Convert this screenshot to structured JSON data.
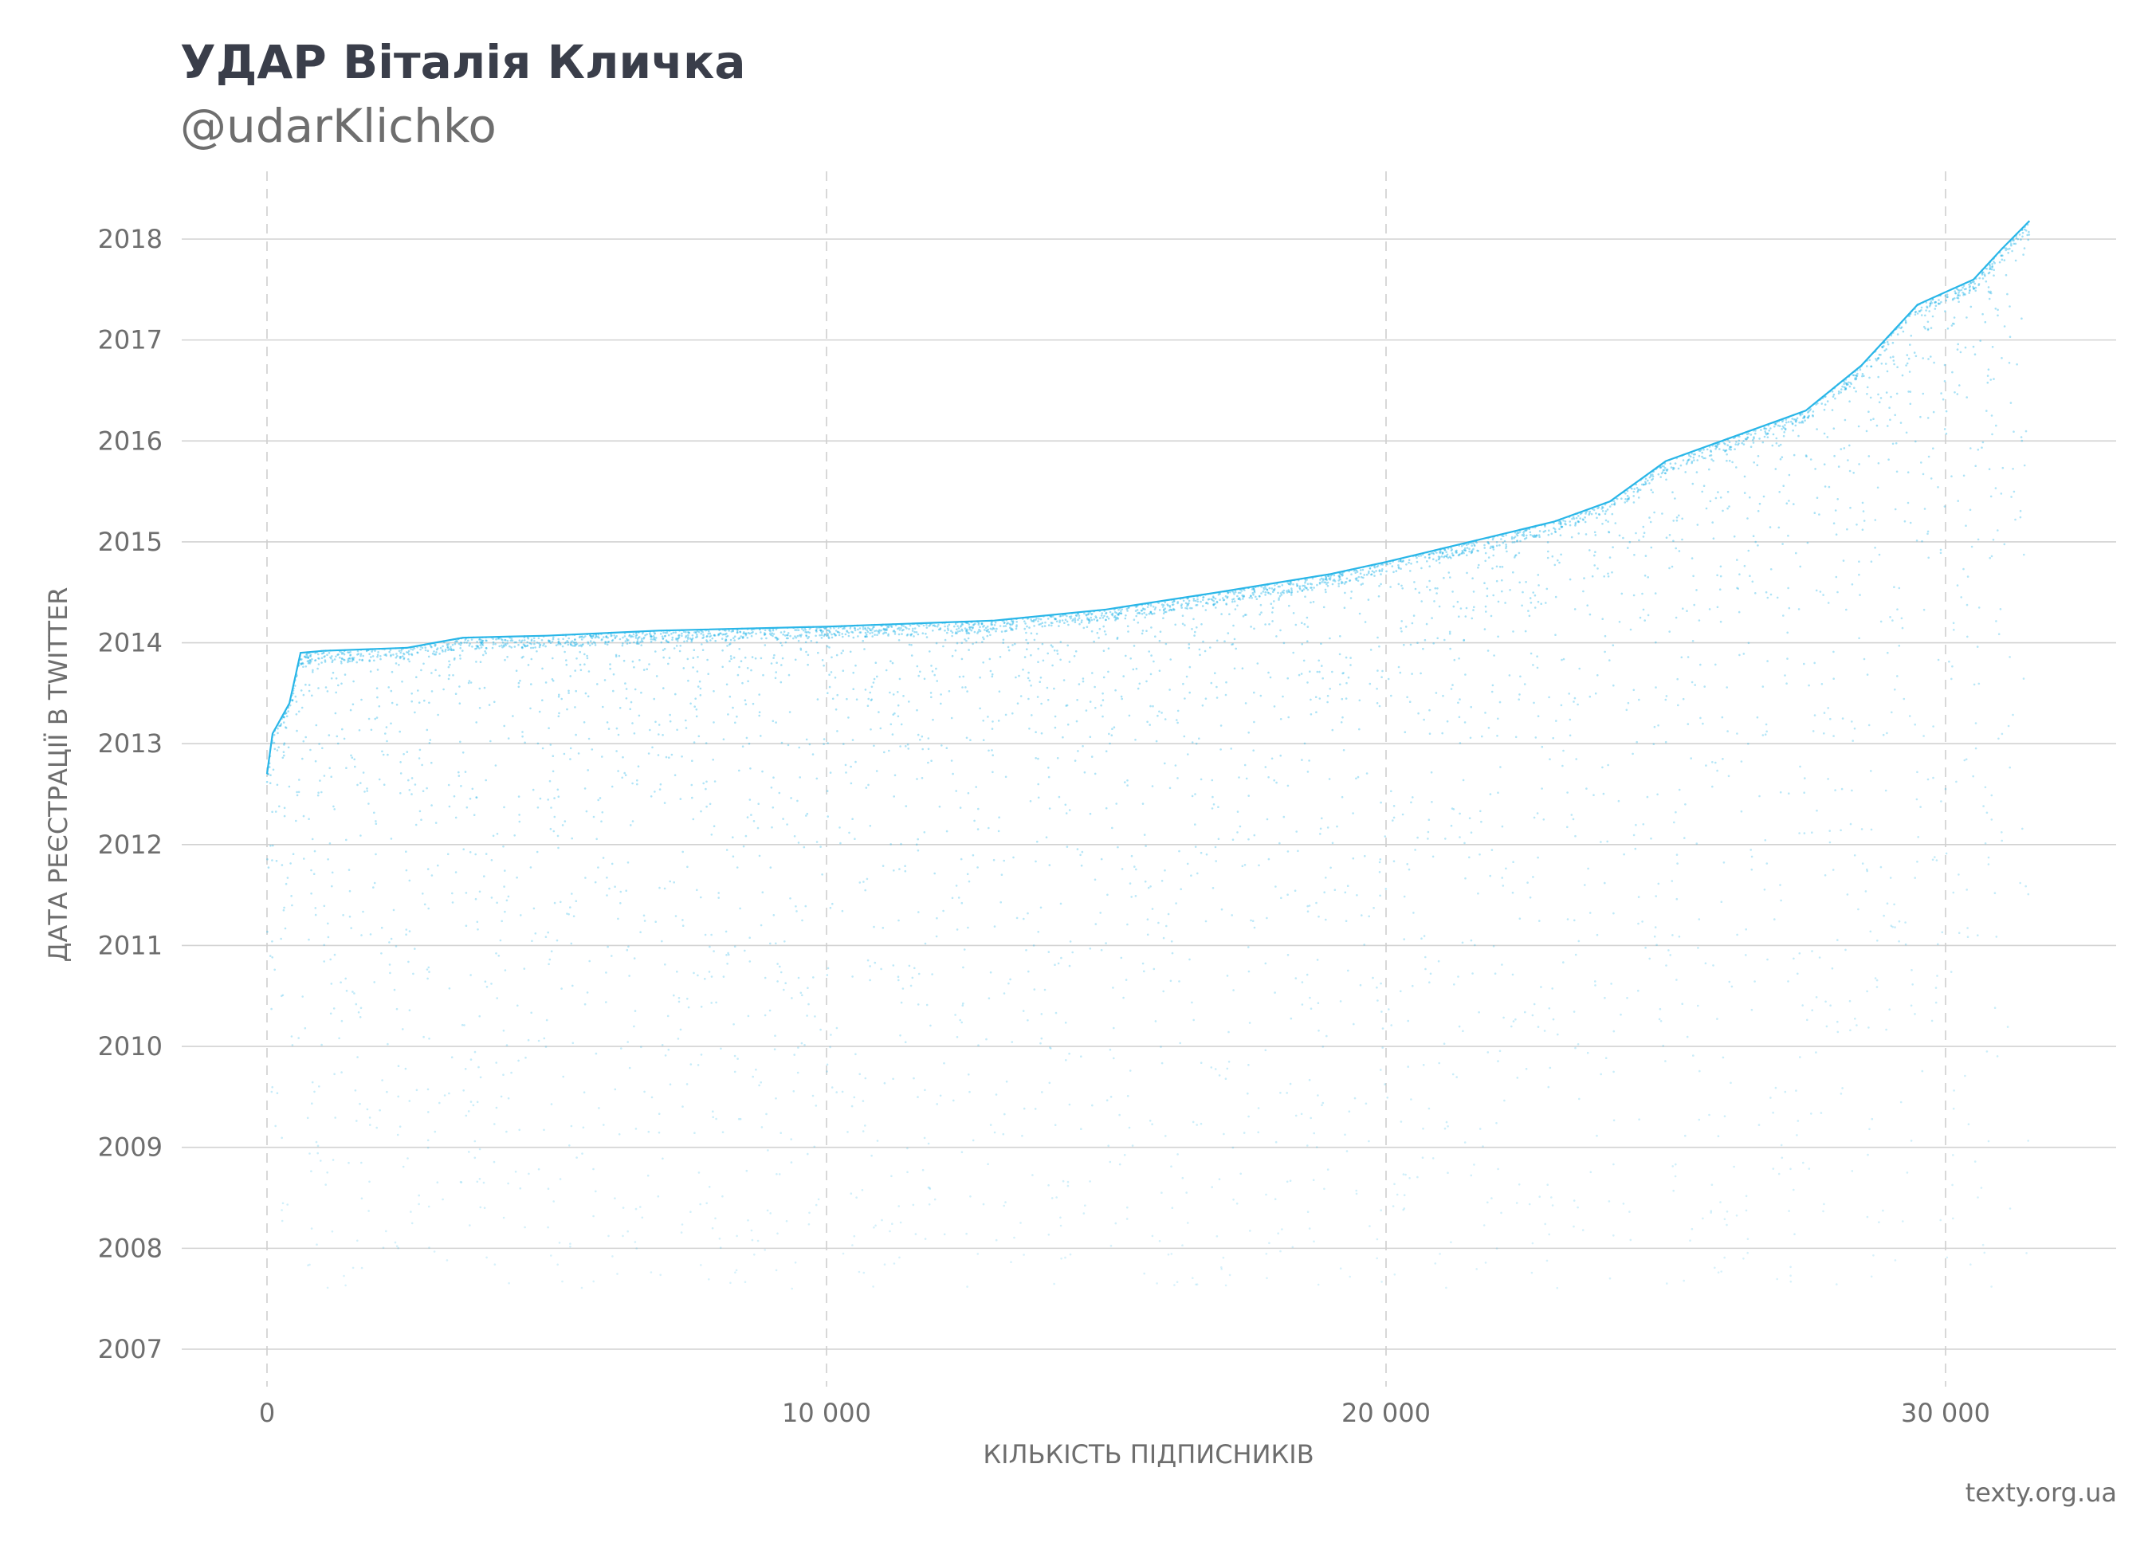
{
  "header": {
    "title": "УДАР Віталія Кличка",
    "subtitle": "@udarKlichko"
  },
  "footer": {
    "source": "texty.org.ua"
  },
  "chart_data": {
    "type": "scatter",
    "title": "УДАР Віталія Кличка",
    "subtitle": "@udarKlichko",
    "xlabel": "КІЛЬКІСТЬ ПІДПИСНИКІВ",
    "ylabel": "ДАТА РЕЄСТРАЦІЇ В TWITTER",
    "xlim": [
      -1500,
      33000
    ],
    "ylim": [
      2006.65,
      2018.65
    ],
    "x_ticks": [
      0,
      10000,
      20000,
      30000
    ],
    "x_tick_labels": [
      "0",
      "10 000",
      "20 000",
      "30 000"
    ],
    "y_ticks": [
      2007,
      2008,
      2009,
      2010,
      2011,
      2012,
      2013,
      2014,
      2015,
      2016,
      2017,
      2018
    ],
    "y_tick_labels": [
      "2007",
      "2008",
      "2009",
      "2010",
      "2011",
      "2012",
      "2013",
      "2014",
      "2015",
      "2016",
      "2017",
      "2018"
    ],
    "grid": {
      "horizontal": "solid",
      "vertical": "dashed"
    },
    "point_color": "#29b6e8",
    "description_of_points": "one point per follower: x = follower order, y = Twitter registration date",
    "upper_envelope": {
      "x": [
        0,
        100,
        400,
        600,
        1000,
        2500,
        3000,
        3500,
        5000,
        7000,
        10000,
        13000,
        15000,
        17000,
        19000,
        20000,
        21500,
        23000,
        24000,
        25000,
        26000,
        27500,
        28500,
        29500,
        30500,
        31000,
        31500
      ],
      "y": [
        2012.7,
        2013.1,
        2013.4,
        2013.9,
        2013.92,
        2013.95,
        2014.0,
        2014.05,
        2014.07,
        2014.12,
        2014.16,
        2014.22,
        2014.33,
        2014.5,
        2014.68,
        2014.8,
        2015.0,
        2015.2,
        2015.4,
        2015.8,
        2016.0,
        2016.3,
        2016.75,
        2017.35,
        2017.6,
        2017.9,
        2018.18
      ]
    }
  }
}
